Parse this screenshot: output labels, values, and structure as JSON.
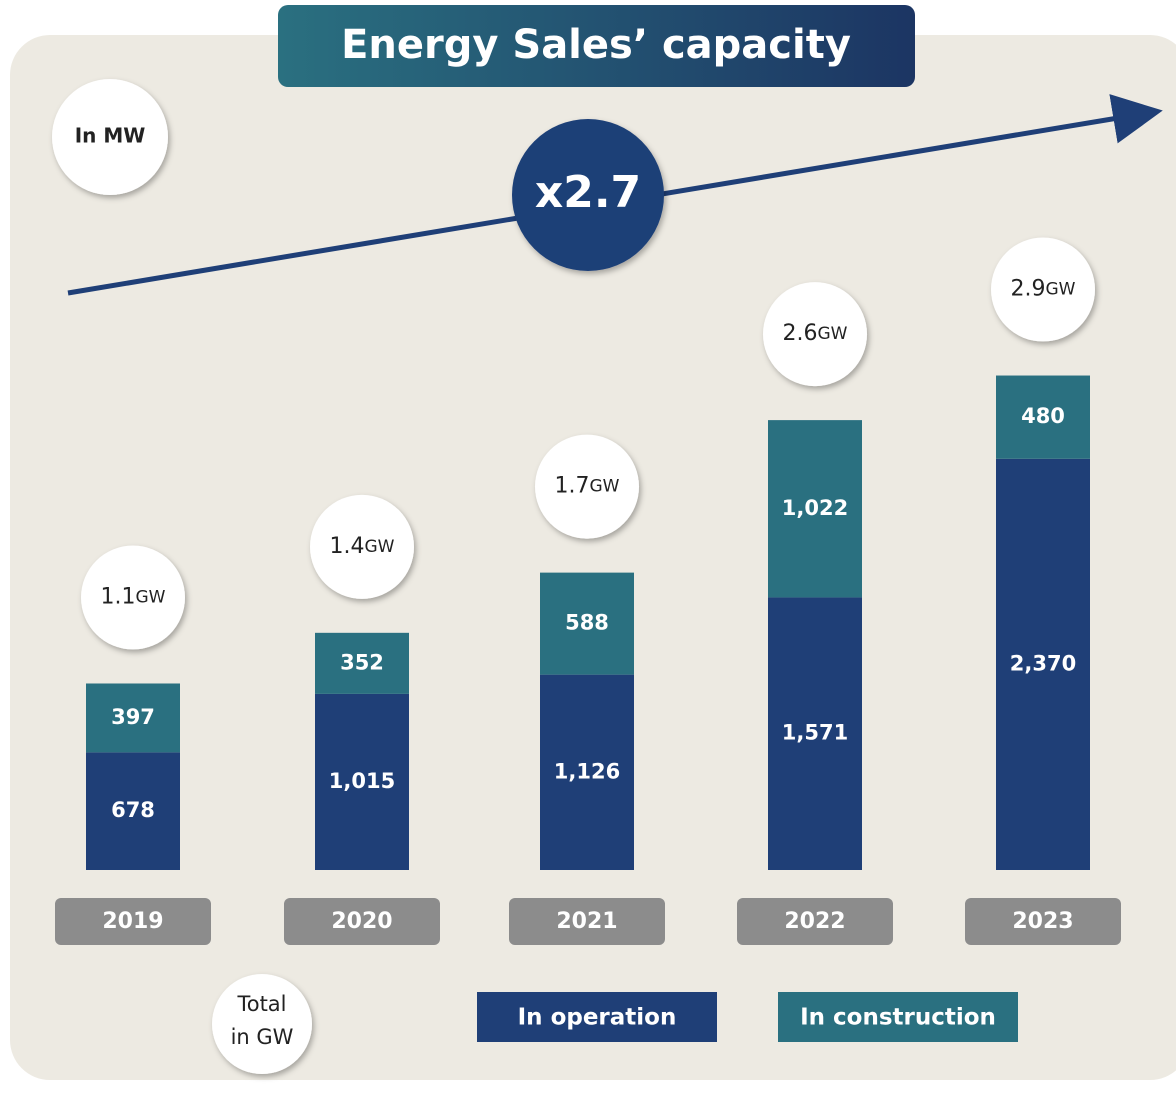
{
  "chart_data": {
    "type": "stacked_bar",
    "title": "Energy Sales’ capacity",
    "unit_note": "In MW",
    "growth_label": "x2.7",
    "total_note": [
      "Total",
      "in GW"
    ],
    "categories": [
      "2019",
      "2020",
      "2021",
      "2022",
      "2023"
    ],
    "series": [
      {
        "name": "In operation",
        "color": "#1f3f77",
        "values": [
          678,
          1015,
          1126,
          1571,
          2370
        ],
        "value_labels": [
          "678",
          "1,015",
          "1,126",
          "1,571",
          "2,370"
        ]
      },
      {
        "name": "In construction",
        "color": "#2a7080",
        "values": [
          397,
          352,
          588,
          1022,
          480
        ],
        "value_labels": [
          "397",
          "352",
          "588",
          "1,022",
          "480"
        ]
      }
    ],
    "total_labels": [
      "1.1GW",
      "1.4GW",
      "1.7GW",
      "2.6GW",
      "2.9GW"
    ]
  }
}
